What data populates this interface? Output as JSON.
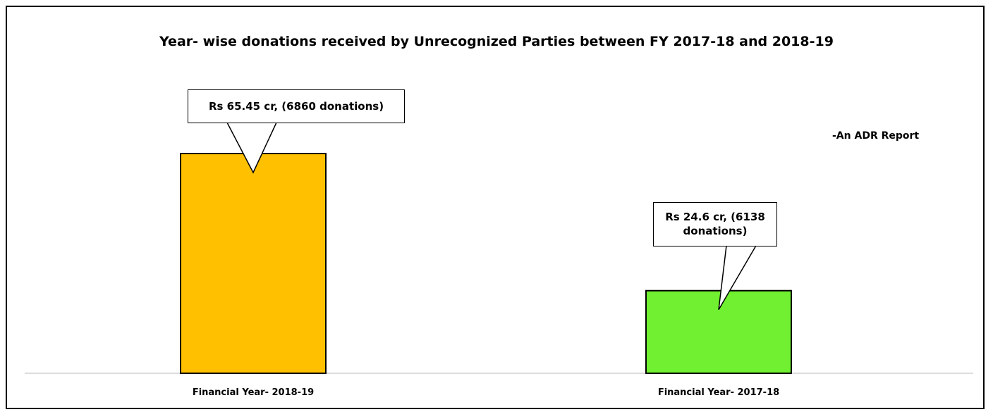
{
  "chart_data": {
    "type": "bar",
    "title": "Year- wise donations received by Unrecognized Parties between FY 2017-18 and 2018-19",
    "annotations": [
      "-An ADR Report"
    ],
    "categories": [
      "Financial Year- 2018-19",
      "Financial Year- 2017-18"
    ],
    "values": [
      65.45,
      24.6
    ],
    "value_labels": [
      "Rs 65.45 cr, (6860 donations)",
      "Rs 24.6 cr, (6138 donations)"
    ],
    "colors": [
      "#ffc000",
      "#70f030"
    ]
  }
}
